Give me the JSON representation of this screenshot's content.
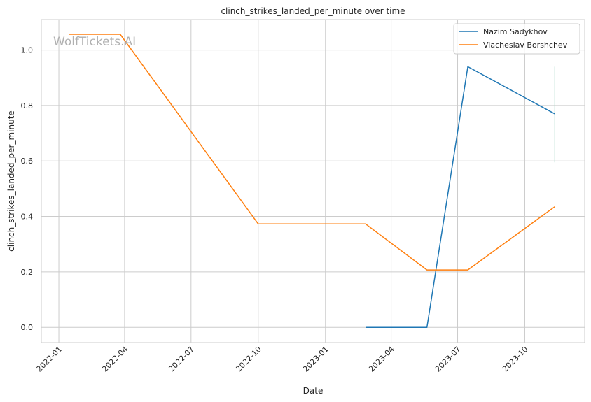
{
  "watermark": "WolfTickets.AI",
  "chart_data": {
    "type": "line",
    "title": "clinch_strikes_landed_per_minute over time",
    "xlabel": "Date",
    "ylabel": "clinch_strikes_landed_per_minute",
    "x_type": "date",
    "xlim": [
      "2021-12-08",
      "2023-12-22"
    ],
    "ylim": [
      -0.055,
      1.11
    ],
    "x_ticks": [
      {
        "value": "2022-01-01",
        "label": "2022-01"
      },
      {
        "value": "2022-04-01",
        "label": "2022-04"
      },
      {
        "value": "2022-07-01",
        "label": "2022-07"
      },
      {
        "value": "2022-10-01",
        "label": "2022-10"
      },
      {
        "value": "2023-01-01",
        "label": "2023-01"
      },
      {
        "value": "2023-04-01",
        "label": "2023-04"
      },
      {
        "value": "2023-07-01",
        "label": "2023-07"
      },
      {
        "value": "2023-10-01",
        "label": "2023-10"
      }
    ],
    "y_ticks": [
      {
        "value": 0.0,
        "label": "0.0"
      },
      {
        "value": 0.2,
        "label": "0.2"
      },
      {
        "value": 0.4,
        "label": "0.4"
      },
      {
        "value": 0.6,
        "label": "0.6"
      },
      {
        "value": 0.8,
        "label": "0.8"
      },
      {
        "value": 1.0,
        "label": "1.0"
      }
    ],
    "grid": true,
    "legend_position": "top-right",
    "series": [
      {
        "name": "Nazim Sadykhov",
        "color": "#1f77b4",
        "points": [
          {
            "x": "2023-02-25",
            "y": 0.0
          },
          {
            "x": "2023-05-20",
            "y": 0.0
          },
          {
            "x": "2023-07-15",
            "y": 0.94
          },
          {
            "x": "2023-11-11",
            "y": 0.77
          }
        ],
        "error_bar": {
          "x": "2023-11-11",
          "low": 0.595,
          "high": 0.94,
          "color": "#a8d8c8"
        }
      },
      {
        "name": "Viacheslav Borshchev",
        "color": "#ff7f0e",
        "points": [
          {
            "x": "2022-01-15",
            "y": 1.057
          },
          {
            "x": "2022-03-26",
            "y": 1.057
          },
          {
            "x": "2022-10-01",
            "y": 0.373
          },
          {
            "x": "2023-02-25",
            "y": 0.373
          },
          {
            "x": "2023-05-20",
            "y": 0.207
          },
          {
            "x": "2023-07-15",
            "y": 0.207
          },
          {
            "x": "2023-11-11",
            "y": 0.435
          }
        ]
      }
    ]
  }
}
